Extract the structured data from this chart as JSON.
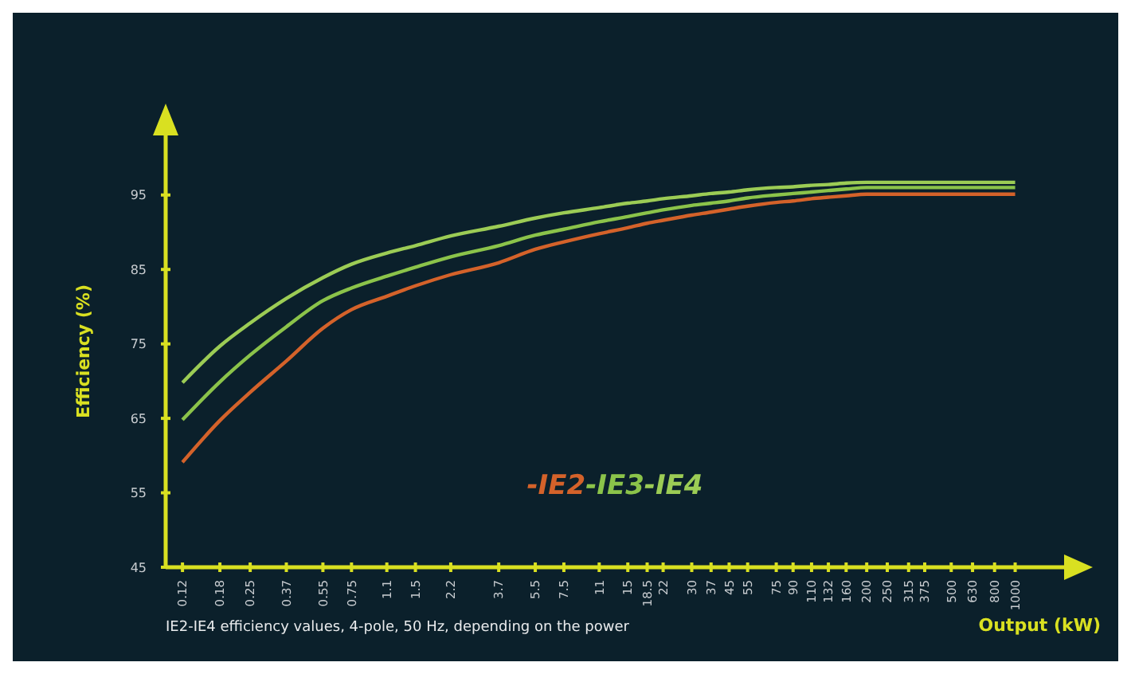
{
  "chart_data": {
    "type": "line",
    "xlabel": "Output (kW)",
    "ylabel": "Efficiency (%)",
    "annotations": [
      "IE2-IE4 efficiency values, 4-pole, 50 Hz, depending on the power"
    ],
    "log": "x",
    "x": [
      0.12,
      0.18,
      0.25,
      0.37,
      0.55,
      0.75,
      1.1,
      1.5,
      2.2,
      3.7,
      5.5,
      7.5,
      11,
      15,
      18.5,
      22,
      30,
      37,
      45,
      55,
      75,
      90,
      110,
      132,
      160,
      200,
      250,
      315,
      375,
      500,
      630,
      800,
      1000
    ],
    "xlim": [
      0.1,
      1700
    ],
    "xticks": [
      0.12,
      0.18,
      0.25,
      0.37,
      0.55,
      0.75,
      1.1,
      1.5,
      2.2,
      3.7,
      5.5,
      7.5,
      11,
      15,
      18.5,
      22,
      30,
      37,
      45,
      55,
      75,
      90,
      110,
      132,
      160,
      200,
      250,
      315,
      375,
      500,
      630,
      800,
      1000
    ],
    "ylim": [
      45,
      103
    ],
    "yticks": [
      45,
      55,
      65,
      75,
      85,
      95
    ],
    "grid": false,
    "series": [
      {
        "name": "-IE2",
        "color": "#d4622a",
        "values": [
          59.1,
          64.7,
          68.5,
          72.7,
          77.1,
          79.6,
          81.4,
          82.8,
          84.3,
          85.9,
          87.7,
          88.7,
          89.8,
          90.6,
          91.2,
          91.6,
          92.3,
          92.7,
          93.1,
          93.5,
          94.0,
          94.2,
          94.5,
          94.7,
          94.9,
          95.1,
          95.1,
          95.1,
          95.1,
          95.1,
          95.1,
          95.1,
          95.1
        ]
      },
      {
        "name": "-IE3",
        "color": "#8bc34a",
        "values": [
          64.8,
          69.9,
          73.5,
          77.3,
          80.8,
          82.5,
          84.1,
          85.3,
          86.7,
          88.2,
          89.6,
          90.4,
          91.4,
          92.1,
          92.6,
          93.0,
          93.6,
          93.9,
          94.2,
          94.6,
          95.0,
          95.2,
          95.4,
          95.6,
          95.8,
          96.0,
          96.0,
          96.0,
          96.0,
          96.0,
          96.0,
          96.0,
          96.0
        ]
      },
      {
        "name": "-IE4",
        "color": "#9ccc55",
        "values": [
          69.8,
          74.7,
          77.8,
          81.1,
          83.9,
          85.7,
          87.2,
          88.2,
          89.5,
          90.8,
          91.9,
          92.6,
          93.3,
          93.9,
          94.2,
          94.5,
          94.9,
          95.2,
          95.4,
          95.7,
          96.0,
          96.1,
          96.3,
          96.4,
          96.6,
          96.7,
          96.7,
          96.7,
          96.7,
          96.7,
          96.7,
          96.7,
          96.7
        ]
      }
    ]
  }
}
